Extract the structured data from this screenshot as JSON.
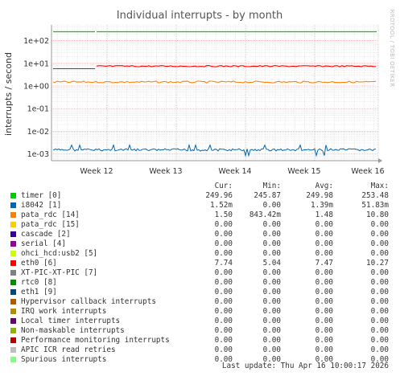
{
  "title": "Individual interrupts - by month",
  "side_text": "RRDTOOL / TOBI OETIKER",
  "last_update": "Last update: Thu Apr 16 10:00:17 2026",
  "chart_data": {
    "type": "line",
    "title": "Individual interrupts - by month",
    "ylabel": "interrupts / second",
    "y_scale": "log",
    "ylim": [
      0.0005,
      500
    ],
    "y_ticks": [
      "1e+02",
      "1e+01",
      "1e+00",
      "1e-01",
      "1e-02",
      "1e-03"
    ],
    "x_ticks": [
      "Week 12",
      "Week 13",
      "Week 14",
      "Week 15",
      "Week 16"
    ],
    "grid": true,
    "legend_position": "bottom",
    "columns": [
      "Cur:",
      "Min:",
      "Avg:",
      "Max:"
    ],
    "series": [
      {
        "name": "timer [0]",
        "color": "#00cc00",
        "cur": "249.96",
        "min": "245.87",
        "avg": "249.98",
        "max": "253.48",
        "level": 250
      },
      {
        "name": "i8042 [1]",
        "color": "#0066b3",
        "cur": "1.52m",
        "min": "0.00",
        "avg": "1.39m",
        "max": "51.83m",
        "level": 0.0015
      },
      {
        "name": "pata_rdc [14]",
        "color": "#ff8000",
        "cur": "1.50",
        "min": "843.42m",
        "avg": "1.48",
        "max": "10.80",
        "level": 1.5
      },
      {
        "name": "pata_rdc [15]",
        "color": "#ffcc00",
        "cur": "0.00",
        "min": "0.00",
        "avg": "0.00",
        "max": "0.00"
      },
      {
        "name": "cascade [2]",
        "color": "#330099",
        "cur": "0.00",
        "min": "0.00",
        "avg": "0.00",
        "max": "0.00"
      },
      {
        "name": "serial [4]",
        "color": "#990099",
        "cur": "0.00",
        "min": "0.00",
        "avg": "0.00",
        "max": "0.00"
      },
      {
        "name": "ohci_hcd:usb2 [5]",
        "color": "#ccff00",
        "cur": "0.00",
        "min": "0.00",
        "avg": "0.00",
        "max": "0.00"
      },
      {
        "name": "eth0 [6]",
        "color": "#ff0000",
        "cur": "7.74",
        "min": "5.04",
        "avg": "7.47",
        "max": "10.27",
        "level": 7.5
      },
      {
        "name": "XT-PIC-XT-PIC [7]",
        "color": "#808080",
        "cur": "0.00",
        "min": "0.00",
        "avg": "0.00",
        "max": "0.00"
      },
      {
        "name": "rtc0 [8]",
        "color": "#008f00",
        "cur": "0.00",
        "min": "0.00",
        "avg": "0.00",
        "max": "0.00"
      },
      {
        "name": "eth1 [9]",
        "color": "#00487d",
        "cur": "0.00",
        "min": "0.00",
        "avg": "0.00",
        "max": "0.00"
      },
      {
        "name": "Hypervisor callback interrupts",
        "color": "#b35a00",
        "cur": "0.00",
        "min": "0.00",
        "avg": "0.00",
        "max": "0.00"
      },
      {
        "name": "IRQ work interrupts",
        "color": "#b38f00",
        "cur": "0.00",
        "min": "0.00",
        "avg": "0.00",
        "max": "0.00"
      },
      {
        "name": "Local timer interrupts",
        "color": "#6b006b",
        "cur": "0.00",
        "min": "0.00",
        "avg": "0.00",
        "max": "0.00"
      },
      {
        "name": "Non-maskable interrupts",
        "color": "#8fb300",
        "cur": "0.00",
        "min": "0.00",
        "avg": "0.00",
        "max": "0.00"
      },
      {
        "name": "Performance monitoring interrupts",
        "color": "#b30000",
        "cur": "0.00",
        "min": "0.00",
        "avg": "0.00",
        "max": "0.00"
      },
      {
        "name": "APIC ICR read retries",
        "color": "#bebebe",
        "cur": "0.00",
        "min": "0.00",
        "avg": "0.00",
        "max": "0.00"
      },
      {
        "name": "Spurious interrupts",
        "color": "#80ff80",
        "cur": "0.00",
        "min": "0.00",
        "avg": "0.00",
        "max": "0.00"
      }
    ]
  }
}
